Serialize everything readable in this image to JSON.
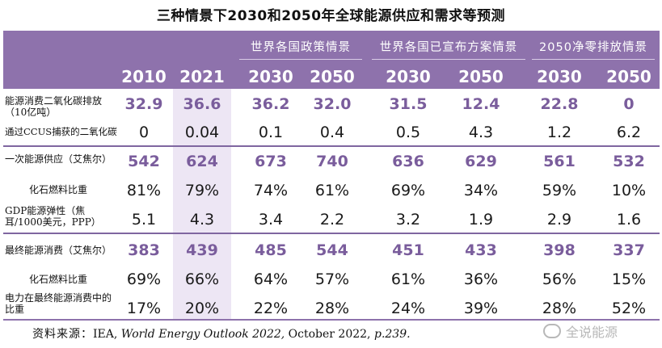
{
  "title": "三种情景下2030和2050年全球能源供应和需求等预测",
  "scenarios": [
    "世界各国政策情景",
    "世界各国已宣布方案情景",
    "2050净零排放情景"
  ],
  "years": [
    "2010",
    "2021",
    "2030",
    "2050",
    "2030",
    "2050",
    "2030",
    "2050"
  ],
  "rows": [
    {
      "label": "能源消费二氧化碳排放（10亿吨）",
      "values": [
        "32.9",
        "36.6",
        "36.2",
        "32.0",
        "31.5",
        "12.4",
        "22.8",
        "0"
      ],
      "style": "purple"
    },
    {
      "label": "通过CCUS捕获的二氧化碳",
      "values": [
        "0",
        "0.04",
        "0.1",
        "0.4",
        "0.5",
        "4.3",
        "1.2",
        "6.2"
      ],
      "style": "plain"
    },
    {
      "label": "一次能源供应（艾焦尔）",
      "values": [
        "542",
        "624",
        "673",
        "740",
        "636",
        "629",
        "561",
        "532"
      ],
      "style": "purple"
    },
    {
      "label": "化石燃料比重",
      "values": [
        "81%",
        "79%",
        "74%",
        "61%",
        "69%",
        "34%",
        "59%",
        "10%"
      ],
      "style": "plain"
    },
    {
      "label": "GDP能源弹性（焦耳/1000美元，PPP）",
      "values": [
        "5.1",
        "4.3",
        "3.4",
        "2.2",
        "3.2",
        "1.9",
        "2.9",
        "1.6"
      ],
      "style": "plain"
    },
    {
      "label": "最终能源消费（艾焦尔）",
      "values": [
        "383",
        "439",
        "485",
        "544",
        "451",
        "433",
        "398",
        "337"
      ],
      "style": "purple"
    },
    {
      "label": "化石燃料比重",
      "values": [
        "69%",
        "66%",
        "64%",
        "57%",
        "61%",
        "36%",
        "56%",
        "15%"
      ],
      "style": "plain"
    },
    {
      "label": "电力在最终能源消费中的比重",
      "values": [
        "17%",
        "20%",
        "22%",
        "28%",
        "24%",
        "39%",
        "28%",
        "52%"
      ],
      "style": "plain"
    }
  ],
  "source": {
    "prefix": "资料来源：",
    "org": "IEA, ",
    "report": "World Energy Outlook 2022,",
    "date": " October 2022, ",
    "page": "p",
    "page_num": ".239."
  },
  "watermark": "全说能源",
  "colors": {
    "header": "#8e72ac",
    "highlight_column": "#ede6f4",
    "value_accent": "#7a5d9c"
  }
}
